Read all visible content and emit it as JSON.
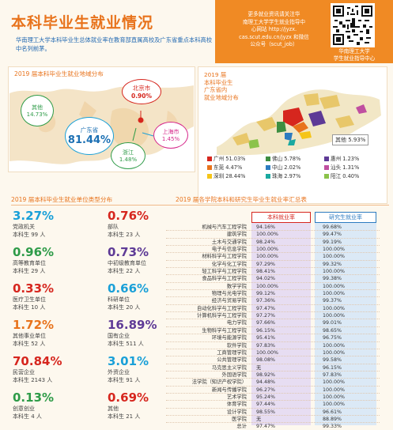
{
  "header": {
    "title": "本科毕业生就业情况",
    "subtitle": "华南理工大学本科毕业生总体就业率在教育部直属高校及广东省重点本科高校中名列前茅。"
  },
  "qr": {
    "text_lines": [
      "更多就业资讯请关注华",
      "南理工大学学生就业指导中",
      "心网站 http://jyzx.",
      "cas.scut.edu.cn/jyzx 和微信",
      "公众号（scut_job）"
    ],
    "caption_lines": [
      "华南理工大学",
      "学生就业指导中心"
    ]
  },
  "regional": {
    "title": "2019 届本科毕业生就业地域分布",
    "items": [
      {
        "name": "其他",
        "pct": "14.73%"
      },
      {
        "name": "北京市",
        "pct": "0.90%"
      },
      {
        "name": "广东省",
        "pct": "81.44%"
      },
      {
        "name": "上海市",
        "pct": "1.45%"
      },
      {
        "name": "浙江",
        "pct": "1.48%"
      }
    ]
  },
  "guangdong": {
    "title_lines": [
      "2019 届",
      "本科毕业生",
      "广东省内",
      "就业地域分布"
    ],
    "other": "其他 5.93%",
    "legend": [
      {
        "label": "广州 51.03%",
        "color": "#d6261e"
      },
      {
        "label": "佛山 5.78%",
        "color": "#3e8e41"
      },
      {
        "label": "惠州 1.23%",
        "color": "#5e3a96"
      },
      {
        "label": "东莞 4.47%",
        "color": "#e8731c"
      },
      {
        "label": "中山 2.02%",
        "color": "#2c7bc0"
      },
      {
        "label": "汕头 1.31%",
        "color": "#c04fa0"
      },
      {
        "label": "深圳 28.44%",
        "color": "#f5c518"
      },
      {
        "label": "珠海 2.97%",
        "color": "#1aa9a0"
      },
      {
        "label": "阳江 0.40%",
        "color": "#8bc34a"
      }
    ]
  },
  "unit_types": {
    "title": "2019 届本科毕业生就业单位类型分布",
    "items": [
      {
        "pct": "3.27%",
        "name": "党政机关",
        "count": "本科生 99 人",
        "color": "#1aa0d8"
      },
      {
        "pct": "0.76%",
        "name": "部队",
        "count": "本科生 23 人",
        "color": "#d6261e"
      },
      {
        "pct": "0.96%",
        "name": "高等教育单位",
        "count": "本科生 29 人",
        "color": "#2e9b48"
      },
      {
        "pct": "0.73%",
        "name": "中初级教育单位",
        "count": "本科生 22 人",
        "color": "#5e3a96"
      },
      {
        "pct": "0.33%",
        "name": "医疗卫生单位",
        "count": "本科生 10 人",
        "color": "#d6261e"
      },
      {
        "pct": "0.66%",
        "name": "科研单位",
        "count": "本科生 20 人",
        "color": "#1aa0d8"
      },
      {
        "pct": "1.72%",
        "name": "其他事业单位",
        "count": "本科生 52 人",
        "color": "#e8731c"
      },
      {
        "pct": "16.89%",
        "name": "国有企业",
        "count": "本科生 511 人",
        "color": "#5e3a96"
      },
      {
        "pct": "70.84%",
        "name": "民营企业",
        "count": "本科生 2143 人",
        "color": "#d6261e"
      },
      {
        "pct": "3.01%",
        "name": "外资企业",
        "count": "本科生 91 人",
        "color": "#1aa0d8"
      },
      {
        "pct": "0.13%",
        "name": "创意创业",
        "count": "本科生 4 人",
        "color": "#2e9b48"
      },
      {
        "pct": "0.69%",
        "name": "其他",
        "count": "本科生 21 人",
        "color": "#d6261e"
      }
    ]
  },
  "rates": {
    "title": "2019 届各学院本科和研究生毕业生就业率汇总表",
    "col_ug": "本科就业率",
    "col_pg": "研究生就业率",
    "rows": [
      {
        "school": "机械与汽车工程学院",
        "ug": "94.16%",
        "pg": "99.68%"
      },
      {
        "school": "建筑学院",
        "ug": "100.00%",
        "pg": "99.47%"
      },
      {
        "school": "土木与交通学院",
        "ug": "98.24%",
        "pg": "99.19%"
      },
      {
        "school": "电子与信息学院",
        "ug": "100.00%",
        "pg": "100.00%"
      },
      {
        "school": "材料科学与工程学院",
        "ug": "100.00%",
        "pg": "100.00%"
      },
      {
        "school": "化学与化工学院",
        "ug": "97.29%",
        "pg": "99.32%"
      },
      {
        "school": "轻工科学与工程学院",
        "ug": "98.41%",
        "pg": "100.00%"
      },
      {
        "school": "食品科学与工程学院",
        "ug": "94.02%",
        "pg": "99.38%"
      },
      {
        "school": "数学学院",
        "ug": "100.00%",
        "pg": "100.00%"
      },
      {
        "school": "物理与光电学院",
        "ug": "99.12%",
        "pg": "100.00%"
      },
      {
        "school": "经济与贸易学院",
        "ug": "97.36%",
        "pg": "99.37%"
      },
      {
        "school": "自动化科学与工程学院",
        "ug": "97.47%",
        "pg": "100.00%"
      },
      {
        "school": "计算机科学与工程学院",
        "ug": "97.27%",
        "pg": "100.00%"
      },
      {
        "school": "电力学院",
        "ug": "97.66%",
        "pg": "99.01%"
      },
      {
        "school": "生物科学与工程学院",
        "ug": "96.15%",
        "pg": "98.65%"
      },
      {
        "school": "环境与能源学院",
        "ug": "95.41%",
        "pg": "96.75%"
      },
      {
        "school": "软件学院",
        "ug": "97.83%",
        "pg": "100.00%"
      },
      {
        "school": "工商管理学院",
        "ug": "100.00%",
        "pg": "100.00%"
      },
      {
        "school": "公共管理学院",
        "ug": "98.08%",
        "pg": "99.58%"
      },
      {
        "school": "马克思主义学院",
        "ug": "无",
        "pg": "96.15%"
      },
      {
        "school": "外国语学院",
        "ug": "98.92%",
        "pg": "97.83%"
      },
      {
        "school": "法学院（知识产权学院）",
        "ug": "94.48%",
        "pg": "100.00%"
      },
      {
        "school": "新闻与传播学院",
        "ug": "96.27%",
        "pg": "100.00%"
      },
      {
        "school": "艺术学院",
        "ug": "95.24%",
        "pg": "100.00%"
      },
      {
        "school": "体育学院",
        "ug": "97.44%",
        "pg": "100.00%"
      },
      {
        "school": "设计学院",
        "ug": "98.55%",
        "pg": "96.61%"
      },
      {
        "school": "医学院",
        "ug": "无",
        "pg": "88.89%"
      },
      {
        "school": "总计",
        "ug": "97.47%",
        "pg": "99.33%"
      }
    ]
  }
}
